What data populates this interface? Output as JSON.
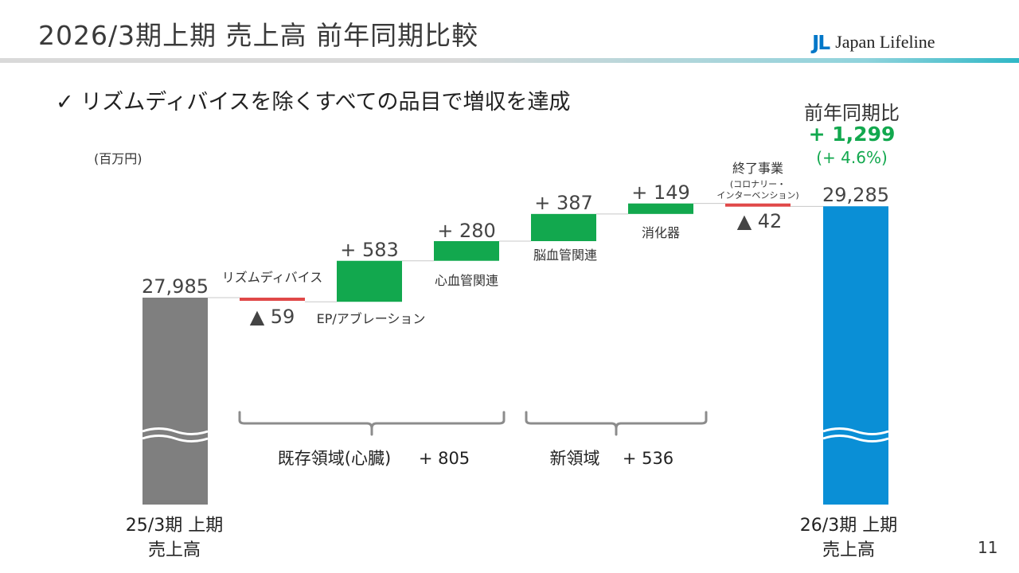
{
  "header": {
    "title": "2026/3期上期 売上高 前年同期比較",
    "logo_mark": "JL",
    "logo_text": "Japan Lifeline"
  },
  "message": "✓ リズムディバイスを除くすべての品目で増収を達成",
  "unit": "(百万円)",
  "yoy": {
    "title": "前年同期比",
    "value": "+ 1,299",
    "percent": "(+ 4.6%)"
  },
  "page_number": "11",
  "colors": {
    "start_bar": "#7f7f7f",
    "end_bar": "#0a8fd6",
    "increase": "#12a84e",
    "decrease": "#e04848",
    "accent_text": "#12a84e"
  },
  "chart_data": {
    "type": "bar",
    "subtype": "waterfall",
    "unit": "(百万円)",
    "start": {
      "label_lines": [
        "25/3期 上期",
        "売上高"
      ],
      "value": 27985,
      "value_label": "27,985"
    },
    "steps": [
      {
        "category": "リズムディバイス",
        "delta": -59,
        "value_label": "▲ 59"
      },
      {
        "category": "EP/アブレーション",
        "delta": 583,
        "value_label": "+ 583"
      },
      {
        "category": "心血管関連",
        "delta": 280,
        "value_label": "+ 280"
      },
      {
        "category": "脳血管関連",
        "delta": 387,
        "value_label": "+ 387"
      },
      {
        "category": "消化器",
        "delta": 149,
        "value_label": "+ 149"
      },
      {
        "category": "終了事業",
        "sublabel_lines": [
          "(コロナリー・",
          "インターベンション)"
        ],
        "delta": -42,
        "value_label": "▲ 42"
      }
    ],
    "end": {
      "label_lines": [
        "26/3期 上期",
        "売上高"
      ],
      "value": 29285,
      "value_label": "29,285"
    },
    "groups": [
      {
        "label": "既存領域(心臓)",
        "value_label": "+ 805"
      },
      {
        "label": "新領域",
        "value_label": "+ 536"
      }
    ]
  }
}
